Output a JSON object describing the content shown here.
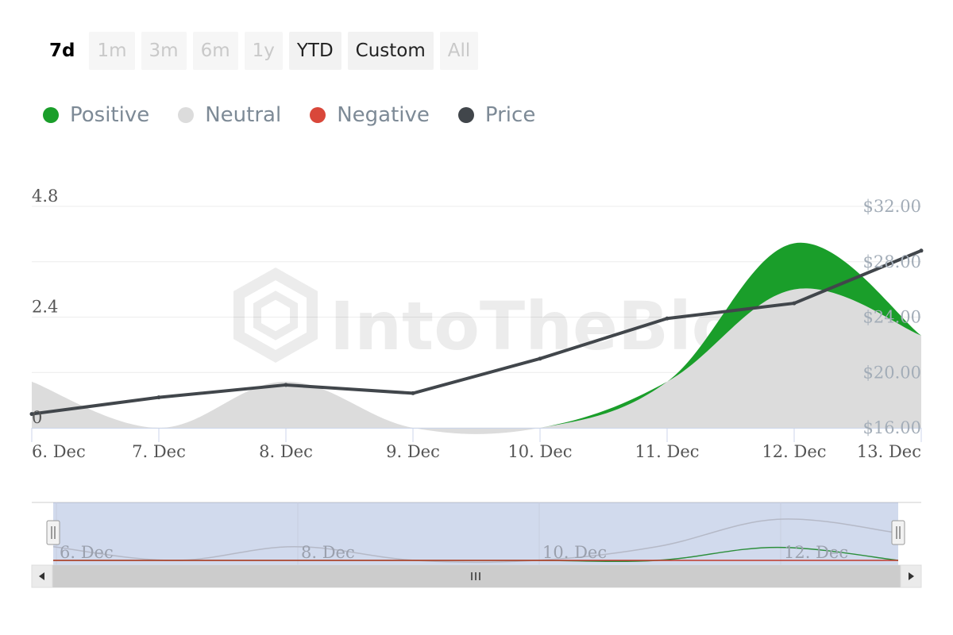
{
  "range_selector": {
    "buttons": [
      {
        "label": "7d",
        "state": "active"
      },
      {
        "label": "1m",
        "state": "disabled"
      },
      {
        "label": "3m",
        "state": "disabled"
      },
      {
        "label": "6m",
        "state": "disabled"
      },
      {
        "label": "1y",
        "state": "disabled"
      },
      {
        "label": "YTD",
        "state": "normal"
      },
      {
        "label": "Custom",
        "state": "normal"
      },
      {
        "label": "All",
        "state": "disabled"
      }
    ]
  },
  "legend": [
    {
      "label": "Positive",
      "color": "#1a9e2a"
    },
    {
      "label": "Neutral",
      "color": "#dcdcdc"
    },
    {
      "label": "Negative",
      "color": "#d9473a"
    },
    {
      "label": "Price",
      "color": "#41464b"
    }
  ],
  "watermark": "IntoTheBlock",
  "chart_data": {
    "type": "area",
    "categories": [
      "6. Dec",
      "7. Dec",
      "8. Dec",
      "9. Dec",
      "10. Dec",
      "11. Dec",
      "12. Dec",
      "13. Dec"
    ],
    "y_left": {
      "ticks": [
        "0",
        "2.4",
        "4.8"
      ],
      "range": [
        0,
        4.8
      ]
    },
    "y_right": {
      "ticks": [
        "$16.00",
        "$20.00",
        "$24.00",
        "$28.00",
        "$32.00"
      ],
      "range": [
        16,
        32
      ]
    },
    "series": [
      {
        "name": "Negative",
        "axis": "left",
        "stack": true,
        "values": [
          0,
          0,
          0,
          0,
          0,
          0,
          0,
          0
        ]
      },
      {
        "name": "Neutral",
        "axis": "left",
        "stack": true,
        "values": [
          1.0,
          0,
          1.0,
          0,
          0,
          1.0,
          3.0,
          2.0
        ]
      },
      {
        "name": "Positive",
        "axis": "left",
        "stack": true,
        "values": [
          0,
          0,
          0,
          0,
          0,
          0,
          1.0,
          0
        ]
      },
      {
        "name": "Price",
        "axis": "right",
        "type": "line",
        "values": [
          17.0,
          18.2,
          19.1,
          18.5,
          21.0,
          23.9,
          25.0,
          28.8
        ]
      }
    ],
    "navigator_labels": [
      "6. Dec",
      "8. Dec",
      "10. Dec",
      "12. Dec"
    ],
    "grid": true
  }
}
